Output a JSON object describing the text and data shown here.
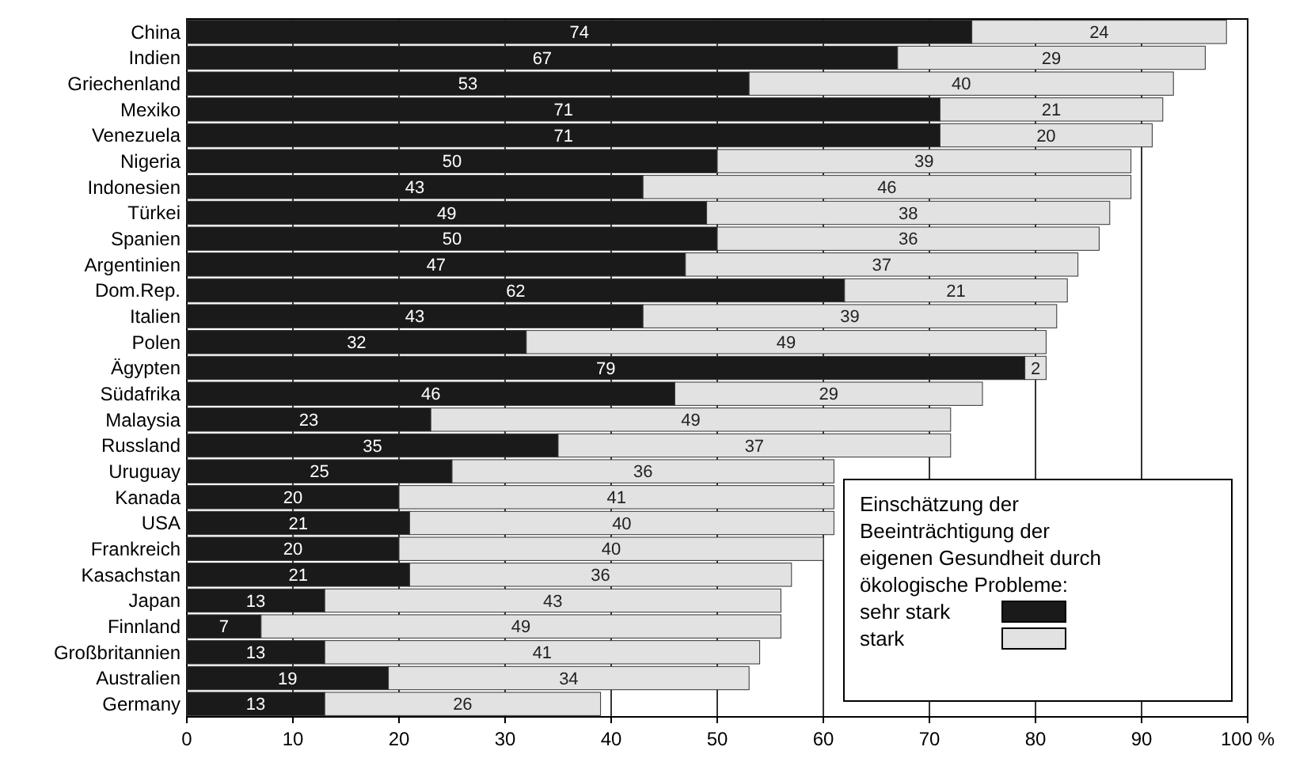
{
  "chart_data": {
    "type": "bar",
    "orientation": "horizontal",
    "stacked": true,
    "data_labels": true,
    "grid": "x",
    "legend": "bottom right",
    "legend_title": "Einschätzung der Beeinträchtigung der eigenen Gesundheit durch ökologische Probleme:",
    "categories": [
      "China",
      "Indien",
      "Griechenland",
      "Mexiko",
      "Venezuela",
      "Nigeria",
      "Indonesien",
      "Türkei",
      "Spanien",
      "Argentinien",
      "Dom.Rep.",
      "Italien",
      "Polen",
      "Ägypten",
      "Südafrika",
      "Malaysia",
      "Russland",
      "Uruguay",
      "Kanada",
      "USA",
      "Frankreich",
      "Kasachstan",
      "Japan",
      "Finnland",
      "Großbritannien",
      "Australien",
      "Germany"
    ],
    "series": [
      {
        "name": "sehr stark",
        "color": "#1a1a1a",
        "values": [
          74,
          67,
          53,
          71,
          71,
          50,
          43,
          49,
          50,
          47,
          62,
          43,
          32,
          79,
          46,
          23,
          35,
          25,
          20,
          21,
          20,
          21,
          13,
          7,
          13,
          19,
          13
        ]
      },
      {
        "name": "stark",
        "color": "#e2e2e2",
        "values": [
          24,
          29,
          40,
          21,
          20,
          39,
          46,
          38,
          36,
          37,
          21,
          39,
          49,
          2,
          29,
          49,
          37,
          36,
          41,
          40,
          40,
          36,
          43,
          49,
          41,
          34,
          26
        ]
      }
    ],
    "xlim": [
      0,
      100
    ],
    "xticks": [
      0,
      10,
      20,
      30,
      40,
      50,
      60,
      70,
      80,
      90,
      {
        "value": 100,
        "label": "100 %"
      }
    ]
  }
}
